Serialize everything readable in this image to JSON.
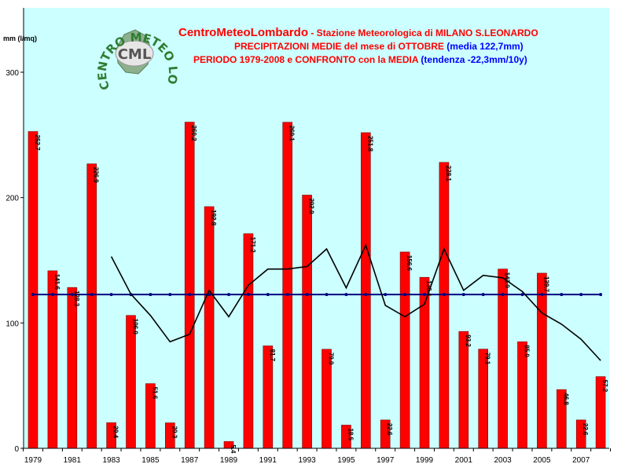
{
  "header": {
    "brand": "CentroMeteoLombardo",
    "station": " - Stazione Meteorologica di MILANO S.LEONARDO",
    "line2_red": "PRECIPITAZIONI MEDIE del mese di OTTOBRE",
    "line2_blue": " (media 122,7mm)",
    "line3_red": "PERIODO 1979-2008 e CONFRONTO con la MEDIA",
    "line3_blue": " (tendenza -22,3mm/10y)"
  },
  "logo": {
    "arc_text": "CENTRO METEO LOMBARDO",
    "initials": "CML"
  },
  "colors": {
    "plot_bg": "#ccffff",
    "bar": "#ff0000",
    "bar_stroke": "#800000",
    "mean_line": "#000080",
    "trend_line": "#000000",
    "title_red": "#ff0000",
    "title_blue": "#0000ff",
    "logo_green": "#2e7d32"
  },
  "chart_data": {
    "type": "bar",
    "ylabel": "mm (l/mq)",
    "ylim": [
      0,
      300
    ],
    "yticks": [
      0,
      100,
      200,
      300
    ],
    "grid": false,
    "x": [
      1979,
      1980,
      1981,
      1982,
      1983,
      1984,
      1985,
      1986,
      1987,
      1988,
      1989,
      1990,
      1991,
      1992,
      1993,
      1994,
      1995,
      1996,
      1997,
      1998,
      1999,
      2000,
      2001,
      2002,
      2003,
      2004,
      2005,
      2006,
      2007,
      2008
    ],
    "xtick_labels": [
      "1979",
      "1981",
      "1983",
      "1985",
      "1987",
      "1989",
      "1991",
      "1993",
      "1995",
      "1997",
      "1999",
      "2001",
      "2003",
      "2005",
      "2007"
    ],
    "values": [
      252.7,
      141.6,
      128.3,
      226.9,
      20.4,
      106.0,
      51.6,
      20.3,
      260.2,
      192.8,
      5.4,
      171.2,
      81.7,
      260.1,
      202.0,
      79.0,
      18.5,
      251.8,
      22.6,
      156.6,
      136.4,
      228.1,
      93.2,
      79.1,
      143.0,
      85.0,
      139.7,
      46.8,
      22.6,
      57.2
    ],
    "value_labels": [
      "252.7",
      "141.6",
      "128.3",
      "226.9",
      "20.4",
      "106.0",
      "51.6",
      "20.3",
      "260.2",
      "192.8",
      "5.4",
      "171.2",
      "81.7",
      "260.1",
      "202.0",
      "79.0",
      "18.5",
      "251.8",
      "22.6",
      "156.6",
      "136.4",
      "228.1",
      "93.2",
      "79.1",
      "143.0",
      "85.0",
      "139.7",
      "46.8",
      "22.6",
      "57.2"
    ],
    "mean_value": 122.7,
    "trend_years": [
      1983,
      1984,
      1985,
      1986,
      1987,
      1988,
      1989,
      1990,
      1991,
      1992,
      1993,
      1994,
      1995,
      1996,
      1997,
      1998,
      1999,
      2000,
      2001,
      2002,
      2003,
      2004,
      2005,
      2006,
      2007,
      2008
    ],
    "trend_values": [
      153,
      123,
      106,
      85,
      91,
      126,
      105,
      130,
      143,
      143,
      145,
      159,
      128,
      162,
      114,
      105,
      115,
      159,
      126,
      138,
      136,
      125,
      108,
      99,
      87,
      70
    ]
  }
}
